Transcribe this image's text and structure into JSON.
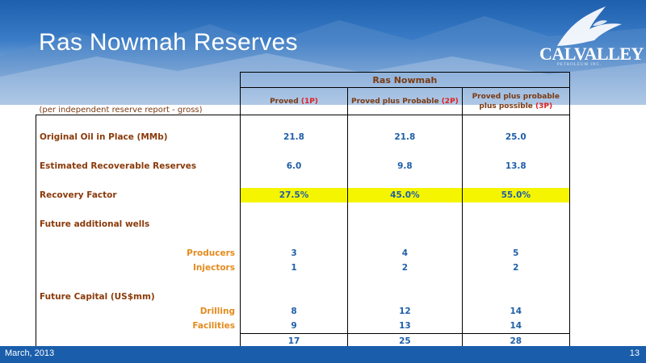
{
  "slide": {
    "title": "Ras Nowmah Reserves",
    "logo_text": "CALVALLEY",
    "logo_sub": "PETROLEUM INC."
  },
  "table": {
    "group_header": "Ras Nowmah",
    "note": "(per independent reserve report - gross)",
    "columns": [
      {
        "label": "Proved ",
        "tag": "(1P)"
      },
      {
        "label": "Proved plus Probable ",
        "tag": "(2P)"
      },
      {
        "label": "Proved plus probable plus possible ",
        "tag": "(3P)"
      }
    ],
    "rows": {
      "ooip": {
        "label": "Original Oil in Place (MMb)",
        "values": [
          "21.8",
          "21.8",
          "25.0"
        ]
      },
      "recoverable": {
        "label": "Estimated Recoverable Reserves",
        "values": [
          "6.0",
          "9.8",
          "13.8"
        ]
      },
      "recovery_factor": {
        "label": "Recovery Factor",
        "values": [
          "27.5%",
          "45.0%",
          "55.0%"
        ]
      },
      "future_wells": {
        "label": "Future additional wells"
      },
      "producers": {
        "label": "Producers",
        "values": [
          "3",
          "4",
          "5"
        ]
      },
      "injectors": {
        "label": "Injectors",
        "values": [
          "1",
          "2",
          "2"
        ]
      },
      "future_capital": {
        "label": "Future Capital (US$mm)"
      },
      "drilling": {
        "label": "Drilling",
        "values": [
          "8",
          "12",
          "14"
        ]
      },
      "facilities": {
        "label": "Facilities",
        "values": [
          "9",
          "13",
          "14"
        ]
      },
      "total": {
        "values": [
          "17",
          "25",
          "28"
        ]
      }
    }
  },
  "footer": {
    "date": "March, 2013",
    "page": "13"
  },
  "colors": {
    "header_band": "#1a5eab",
    "highlight": "#f5f500",
    "label_brown": "#8a3a0a",
    "sublabel_orange": "#e38b1e",
    "value_blue": "#1f5fa8"
  }
}
